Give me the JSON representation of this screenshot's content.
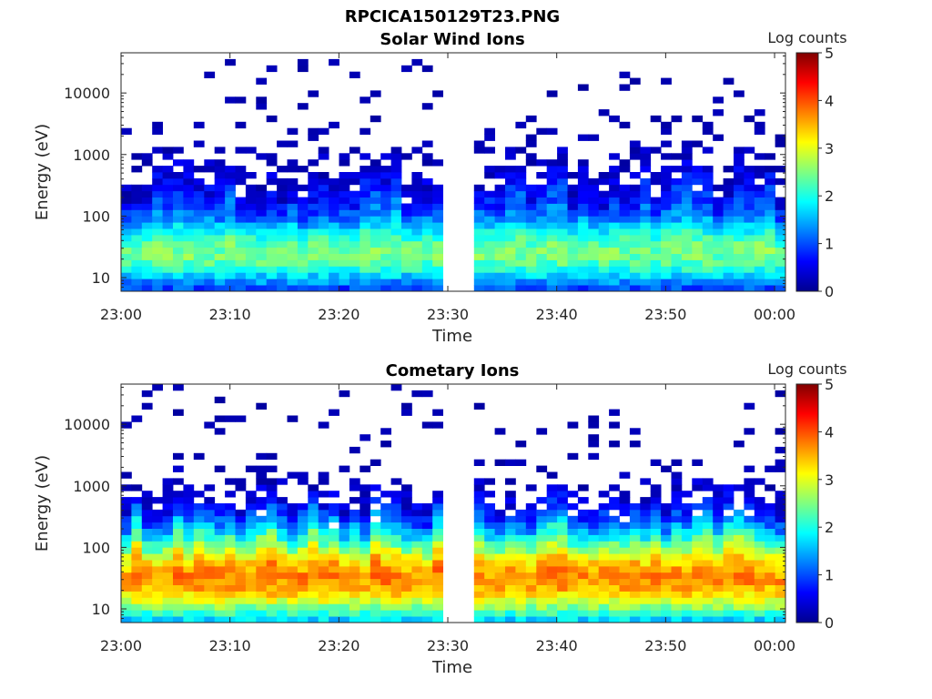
{
  "figure_title": "RPCICA150129T23.PNG",
  "chart_data": [
    {
      "type": "heatmap",
      "title": "Solar Wind Ions",
      "xlabel": "Time",
      "ylabel": "Energy (eV)",
      "colorbar_label": "Log counts",
      "colorbar_ticks": [
        "0",
        "1",
        "2",
        "3",
        "4",
        "5"
      ],
      "colorbar_range": [
        0,
        5
      ],
      "colormap": "jet",
      "x_tick_labels": [
        "23:00",
        "23:10",
        "23:20",
        "23:30",
        "23:40",
        "23:50",
        "00:00"
      ],
      "y_tick_labels": [
        "10",
        "100",
        "1000",
        "10000"
      ],
      "y_scale": "log",
      "ylim_eV": [
        6,
        45000
      ],
      "xlim": [
        "23:00",
        "00:01"
      ],
      "data_gap": [
        "23:29:40",
        "23:32:50"
      ],
      "peak_log_counts": 2.4,
      "peak_energy_eV": [
        20,
        30
      ]
    },
    {
      "type": "heatmap",
      "title": "Cometary Ions",
      "xlabel": "Time",
      "ylabel": "Energy (eV)",
      "colorbar_label": "Log counts",
      "colorbar_ticks": [
        "0",
        "1",
        "2",
        "3",
        "4",
        "5"
      ],
      "colorbar_range": [
        0,
        5
      ],
      "colormap": "jet",
      "x_tick_labels": [
        "23:00",
        "23:10",
        "23:20",
        "23:30",
        "23:40",
        "23:50",
        "00:00"
      ],
      "y_tick_labels": [
        "10",
        "100",
        "1000",
        "10000"
      ],
      "y_scale": "log",
      "ylim_eV": [
        6,
        45000
      ],
      "xlim": [
        "23:00",
        "00:01"
      ],
      "data_gap": [
        "23:29:40",
        "23:32:50"
      ],
      "peak_log_counts": 3.6,
      "peak_energy_eV": [
        25,
        35
      ]
    }
  ]
}
